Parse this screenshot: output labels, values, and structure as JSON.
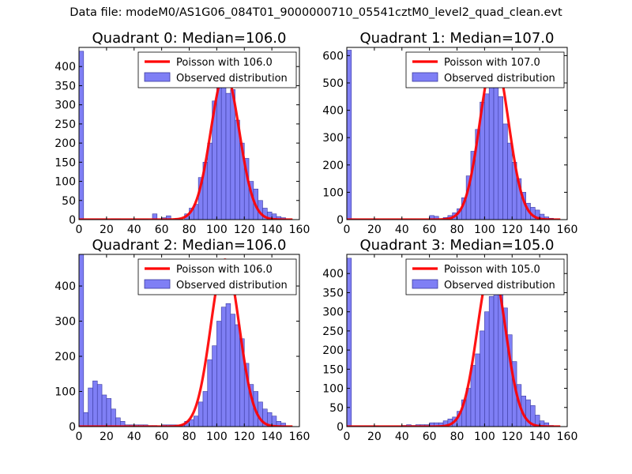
{
  "figure": {
    "suptitle": "Data file: modeM0/AS1G06_084T01_9000000710_05541cztM0_level2_quad_clean.evt"
  },
  "colors": {
    "histogram_fill": "#7f7ff5",
    "histogram_edge": "#3a3aa0",
    "poisson_line": "#ff0000",
    "axes": "#000000"
  },
  "chart_data": [
    {
      "type": "bar",
      "title": "Quadrant 0: Median=106.0",
      "xlim": [
        0,
        160
      ],
      "ylim": [
        0,
        450
      ],
      "xticks": [
        0,
        20,
        40,
        60,
        80,
        100,
        120,
        140,
        160
      ],
      "yticks": [
        0,
        50,
        100,
        150,
        200,
        250,
        300,
        350,
        400
      ],
      "bin_width": 3.333,
      "bins": [
        [
          0,
          440
        ],
        [
          3.33,
          2
        ],
        [
          6.67,
          2
        ],
        [
          10,
          2
        ],
        [
          13.33,
          2
        ],
        [
          16.67,
          2
        ],
        [
          20,
          1
        ],
        [
          23.33,
          2
        ],
        [
          26.67,
          2
        ],
        [
          30,
          1
        ],
        [
          33.33,
          1
        ],
        [
          36.67,
          1
        ],
        [
          40,
          1
        ],
        [
          43.33,
          1
        ],
        [
          46.67,
          1
        ],
        [
          53.33,
          15
        ],
        [
          60,
          5
        ],
        [
          63.33,
          10
        ],
        [
          70,
          3
        ],
        [
          76.67,
          15
        ],
        [
          80,
          30
        ],
        [
          83.33,
          40
        ],
        [
          86.67,
          110
        ],
        [
          90,
          150
        ],
        [
          93.33,
          200
        ],
        [
          96.67,
          310
        ],
        [
          100,
          350
        ],
        [
          103.33,
          380
        ],
        [
          106.67,
          330
        ],
        [
          110,
          340
        ],
        [
          113.33,
          260
        ],
        [
          116.67,
          200
        ],
        [
          120,
          160
        ],
        [
          123.33,
          100
        ],
        [
          126.67,
          80
        ],
        [
          130,
          50
        ],
        [
          133.33,
          30
        ],
        [
          136.67,
          20
        ],
        [
          140,
          15
        ],
        [
          143.33,
          8
        ],
        [
          146.67,
          5
        ]
      ],
      "poisson_mean": 106.0,
      "poisson_peak": 384,
      "legend": [
        "Poisson with 106.0",
        "Observed distribution"
      ],
      "legend_loc": "upper right"
    },
    {
      "type": "bar",
      "title": "Quadrant 1: Median=107.0",
      "xlim": [
        0,
        160
      ],
      "ylim": [
        0,
        630
      ],
      "xticks": [
        0,
        20,
        40,
        60,
        80,
        100,
        120,
        140,
        160
      ],
      "yticks": [
        0,
        100,
        200,
        300,
        400,
        500,
        600
      ],
      "bin_width": 3.333,
      "bins": [
        [
          0,
          620
        ],
        [
          3.33,
          3
        ],
        [
          6.67,
          2
        ],
        [
          10,
          2
        ],
        [
          13.33,
          2
        ],
        [
          16.67,
          1
        ],
        [
          20,
          2
        ],
        [
          23.33,
          1
        ],
        [
          26.67,
          1
        ],
        [
          30,
          1
        ],
        [
          33.33,
          1
        ],
        [
          36.67,
          1
        ],
        [
          40,
          1
        ],
        [
          43.33,
          1
        ],
        [
          46.67,
          1
        ],
        [
          60,
          15
        ],
        [
          63.33,
          12
        ],
        [
          70,
          8
        ],
        [
          73.33,
          15
        ],
        [
          76.67,
          25
        ],
        [
          80,
          40
        ],
        [
          83.33,
          80
        ],
        [
          86.67,
          160
        ],
        [
          90,
          250
        ],
        [
          93.33,
          330
        ],
        [
          96.67,
          430
        ],
        [
          100,
          460
        ],
        [
          103.33,
          580
        ],
        [
          106.67,
          510
        ],
        [
          110,
          450
        ],
        [
          113.33,
          350
        ],
        [
          116.67,
          280
        ],
        [
          120,
          210
        ],
        [
          123.33,
          150
        ],
        [
          126.67,
          100
        ],
        [
          130,
          60
        ],
        [
          133.33,
          45
        ],
        [
          136.67,
          35
        ],
        [
          140,
          20
        ],
        [
          143.33,
          10
        ],
        [
          146.67,
          5
        ]
      ],
      "poisson_mean": 107.0,
      "poisson_peak": 594,
      "legend": [
        "Poisson with 107.0",
        "Observed distribution"
      ],
      "legend_loc": "upper right"
    },
    {
      "type": "bar",
      "title": "Quadrant 2: Median=106.0",
      "xlim": [
        0,
        160
      ],
      "ylim": [
        0,
        490
      ],
      "xticks": [
        0,
        20,
        40,
        60,
        80,
        100,
        120,
        140,
        160
      ],
      "yticks": [
        0,
        100,
        200,
        300,
        400
      ],
      "bin_width": 3.333,
      "bins": [
        [
          0,
          490
        ],
        [
          3.33,
          40
        ],
        [
          6.67,
          110
        ],
        [
          10,
          130
        ],
        [
          13.33,
          120
        ],
        [
          16.67,
          90
        ],
        [
          20,
          80
        ],
        [
          23.33,
          50
        ],
        [
          26.67,
          25
        ],
        [
          30,
          15
        ],
        [
          33.33,
          5
        ],
        [
          36.67,
          5
        ],
        [
          40,
          5
        ],
        [
          43.33,
          5
        ],
        [
          46.67,
          5
        ],
        [
          50,
          3
        ],
        [
          53.33,
          3
        ],
        [
          60,
          5
        ],
        [
          63.33,
          5
        ],
        [
          66.67,
          5
        ],
        [
          70,
          5
        ],
        [
          73.33,
          5
        ],
        [
          76.67,
          15
        ],
        [
          80,
          20
        ],
        [
          83.33,
          30
        ],
        [
          86.67,
          70
        ],
        [
          90,
          100
        ],
        [
          93.33,
          190
        ],
        [
          96.67,
          230
        ],
        [
          100,
          300
        ],
        [
          103.33,
          340
        ],
        [
          106.67,
          350
        ],
        [
          110,
          320
        ],
        [
          113.33,
          290
        ],
        [
          116.67,
          250
        ],
        [
          120,
          180
        ],
        [
          123.33,
          120
        ],
        [
          126.67,
          100
        ],
        [
          130,
          70
        ],
        [
          133.33,
          50
        ],
        [
          136.67,
          40
        ],
        [
          140,
          30
        ],
        [
          143.33,
          15
        ],
        [
          146.67,
          10
        ]
      ],
      "poisson_mean": 106.0,
      "poisson_peak": 475,
      "legend": [
        "Poisson with 106.0",
        "Observed distribution"
      ],
      "legend_loc": "upper right"
    },
    {
      "type": "bar",
      "title": "Quadrant 3: Median=105.0",
      "xlim": [
        0,
        160
      ],
      "ylim": [
        0,
        450
      ],
      "xticks": [
        0,
        20,
        40,
        60,
        80,
        100,
        120,
        140,
        160
      ],
      "yticks": [
        0,
        50,
        100,
        150,
        200,
        250,
        300,
        350,
        400
      ],
      "bin_width": 3.333,
      "bins": [
        [
          0,
          440
        ],
        [
          3.33,
          2
        ],
        [
          6.67,
          2
        ],
        [
          10,
          2
        ],
        [
          13.33,
          2
        ],
        [
          16.67,
          2
        ],
        [
          20,
          2
        ],
        [
          23.33,
          1
        ],
        [
          26.67,
          1
        ],
        [
          30,
          1
        ],
        [
          33.33,
          1
        ],
        [
          36.67,
          1
        ],
        [
          40,
          3
        ],
        [
          43.33,
          5
        ],
        [
          46.67,
          3
        ],
        [
          50,
          5
        ],
        [
          53.33,
          5
        ],
        [
          56.67,
          5
        ],
        [
          60,
          10
        ],
        [
          63.33,
          10
        ],
        [
          66.67,
          10
        ],
        [
          70,
          15
        ],
        [
          73.33,
          20
        ],
        [
          76.67,
          25
        ],
        [
          80,
          40
        ],
        [
          83.33,
          70
        ],
        [
          86.67,
          100
        ],
        [
          90,
          160
        ],
        [
          93.33,
          190
        ],
        [
          96.67,
          250
        ],
        [
          100,
          300
        ],
        [
          103.33,
          340
        ],
        [
          106.67,
          390
        ],
        [
          110,
          350
        ],
        [
          113.33,
          310
        ],
        [
          116.67,
          240
        ],
        [
          120,
          170
        ],
        [
          123.33,
          110
        ],
        [
          126.67,
          80
        ],
        [
          130,
          70
        ],
        [
          133.33,
          55
        ],
        [
          136.67,
          30
        ],
        [
          140,
          15
        ],
        [
          143.33,
          10
        ],
        [
          146.67,
          3
        ]
      ],
      "poisson_mean": 105.0,
      "poisson_peak": 420,
      "legend": [
        "Poisson with 105.0",
        "Observed distribution"
      ],
      "legend_loc": "upper right"
    }
  ]
}
